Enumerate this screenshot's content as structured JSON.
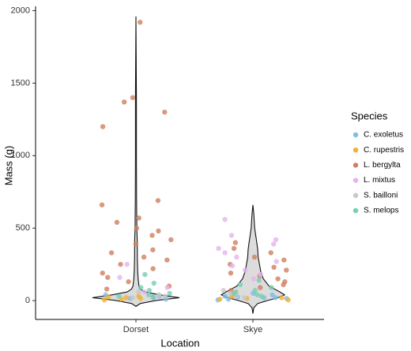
{
  "chart_data": {
    "type": "violin",
    "x_label": "Location",
    "y_label": "Mass (g)",
    "categories": [
      "Dorset",
      "Skye"
    ],
    "ylim": [
      -130,
      2030
    ],
    "yticks": [
      0,
      500,
      1000,
      1500,
      2000
    ],
    "legend_title": "Species",
    "legend_position": "right",
    "violins": [
      {
        "x": "Dorset",
        "y": [
          -40,
          -20,
          0,
          20,
          40,
          60,
          80,
          100,
          150,
          200,
          300,
          400,
          500,
          700,
          1000,
          1400,
          1960
        ],
        "density": [
          0,
          0.1,
          0.45,
          1,
          0.55,
          0.2,
          0.1,
          0.07,
          0.05,
          0.04,
          0.03,
          0.03,
          0.02,
          0.015,
          0.01,
          0.01,
          0
        ]
      },
      {
        "x": "Skye",
        "y": [
          -90,
          -50,
          -20,
          0,
          20,
          40,
          60,
          100,
          150,
          200,
          250,
          300,
          350,
          400,
          500,
          600,
          660
        ],
        "density": [
          0,
          0.02,
          0.11,
          0.33,
          0.58,
          0.73,
          0.62,
          0.37,
          0.24,
          0.18,
          0.15,
          0.12,
          0.11,
          0.09,
          0.04,
          0.02,
          0
        ]
      }
    ],
    "series": [
      {
        "name": "C. exoletus",
        "color": "#7fbde3",
        "x": [
          "Dorset",
          "Dorset",
          "Dorset",
          "Dorset",
          "Dorset",
          "Skye",
          "Skye",
          "Skye",
          "Skye",
          "Skye",
          "Skye",
          "Skye",
          "Skye",
          "Skye",
          "Skye"
        ],
        "values": [
          10,
          25,
          40,
          15,
          30,
          10,
          20,
          30,
          15,
          25,
          40,
          5,
          35,
          20,
          50
        ]
      },
      {
        "name": "C. rupestris",
        "color": "#f2b035",
        "x": [
          "Dorset",
          "Dorset",
          "Dorset",
          "Dorset",
          "Dorset",
          "Dorset",
          "Skye",
          "Skye",
          "Skye",
          "Skye",
          "Skye",
          "Skye"
        ],
        "values": [
          5,
          15,
          20,
          10,
          30,
          25,
          10,
          20,
          30,
          15,
          5,
          40
        ]
      },
      {
        "name": "L. bergylta",
        "color": "#cf7f5f",
        "x": [
          "Dorset",
          "Dorset",
          "Dorset",
          "Dorset",
          "Dorset",
          "Dorset",
          "Dorset",
          "Dorset",
          "Dorset",
          "Dorset",
          "Dorset",
          "Dorset",
          "Dorset",
          "Dorset",
          "Dorset",
          "Dorset",
          "Dorset",
          "Dorset",
          "Dorset",
          "Dorset",
          "Dorset",
          "Dorset",
          "Dorset",
          "Dorset",
          "Dorset",
          "Skye",
          "Skye",
          "Skye",
          "Skye",
          "Skye",
          "Skye",
          "Skye",
          "Skye",
          "Skye",
          "Skye",
          "Skye",
          "Skye",
          "Skye",
          "Skye",
          "Skye"
        ],
        "values": [
          1920,
          1400,
          1370,
          1300,
          1200,
          690,
          660,
          570,
          540,
          500,
          480,
          450,
          420,
          390,
          350,
          330,
          300,
          280,
          250,
          220,
          190,
          160,
          130,
          100,
          80,
          400,
          360,
          330,
          300,
          280,
          250,
          230,
          210,
          190,
          170,
          150,
          130,
          110,
          90,
          70
        ]
      },
      {
        "name": "L. mixtus",
        "color": "#e6b3ef",
        "x": [
          "Dorset",
          "Dorset",
          "Dorset",
          "Dorset",
          "Skye",
          "Skye",
          "Skye",
          "Skye",
          "Skye",
          "Skye",
          "Skye",
          "Skye",
          "Skye",
          "Skye",
          "Skye",
          "Skye"
        ],
        "values": [
          250,
          160,
          90,
          60,
          560,
          450,
          420,
          390,
          360,
          330,
          300,
          270,
          240,
          210,
          180,
          150
        ]
      },
      {
        "name": "S. bailloni",
        "color": "#c8c8c8",
        "x": [
          "Dorset",
          "Dorset",
          "Dorset",
          "Dorset",
          "Skye",
          "Skye",
          "Skye",
          "Skye"
        ],
        "values": [
          20,
          40,
          60,
          30,
          30,
          50,
          70,
          20
        ]
      },
      {
        "name": "S. melops",
        "color": "#78cdb4",
        "x": [
          "Dorset",
          "Dorset",
          "Dorset",
          "Dorset",
          "Dorset",
          "Dorset",
          "Dorset",
          "Dorset",
          "Skye",
          "Skye",
          "Skye",
          "Skye",
          "Skye",
          "Skye",
          "Skye",
          "Skye"
        ],
        "values": [
          180,
          120,
          90,
          70,
          50,
          40,
          30,
          20,
          140,
          110,
          90,
          70,
          60,
          50,
          40,
          30
        ]
      }
    ]
  }
}
